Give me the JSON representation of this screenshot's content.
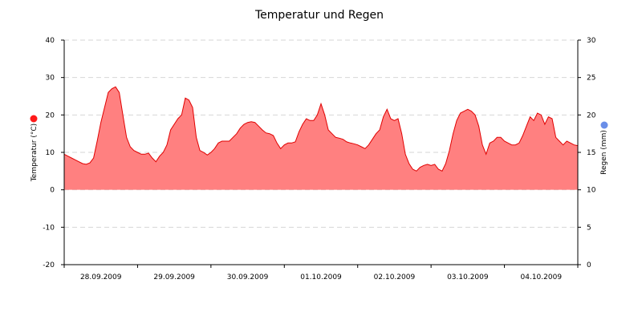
{
  "chart_data": {
    "type": "area",
    "title": "Temperatur und Regen",
    "y_left": {
      "label": "Temperatur (°C)",
      "min": -20,
      "max": 40,
      "ticks": [
        -20,
        -10,
        0,
        10,
        20,
        30,
        40
      ]
    },
    "y_right": {
      "label": "Regen (mm)",
      "min": 0,
      "max": 30,
      "ticks": [
        0,
        5,
        10,
        15,
        20,
        25,
        30
      ]
    },
    "x_labels": [
      "28.09.2009",
      "29.09.2009",
      "30.09.2009",
      "01.10.2009",
      "02.10.2009",
      "03.10.2009",
      "04.10.2009"
    ],
    "grid": true,
    "legend": [
      {
        "side": "left",
        "color": "#ff1a1a"
      },
      {
        "side": "right",
        "color": "#6a8ee8"
      }
    ],
    "series": [
      {
        "axis": "left",
        "color": "#ff8080",
        "line_color": "#e00000",
        "x": [
          0,
          0.05,
          0.1,
          0.15,
          0.2,
          0.25,
          0.3,
          0.35,
          0.4,
          0.45,
          0.5,
          0.55,
          0.6,
          0.65,
          0.7,
          0.75,
          0.8,
          0.85,
          0.9,
          0.95,
          1.0,
          1.05,
          1.1,
          1.15,
          1.2,
          1.25,
          1.3,
          1.35,
          1.4,
          1.45,
          1.5,
          1.55,
          1.6,
          1.65,
          1.7,
          1.75,
          1.8,
          1.85,
          1.9,
          1.95,
          2.0,
          2.05,
          2.1,
          2.15,
          2.2,
          2.25,
          2.3,
          2.35,
          2.4,
          2.45,
          2.5,
          2.55,
          2.6,
          2.65,
          2.7,
          2.75,
          2.8,
          2.85,
          2.9,
          2.95,
          3.0,
          3.05,
          3.1,
          3.15,
          3.2,
          3.25,
          3.3,
          3.35,
          3.4,
          3.45,
          3.5,
          3.55,
          3.6,
          3.65,
          3.7,
          3.75,
          3.8,
          3.85,
          3.9,
          3.95,
          4.0,
          4.05,
          4.1,
          4.15,
          4.2,
          4.25,
          4.3,
          4.35,
          4.4,
          4.45,
          4.5,
          4.55,
          4.6,
          4.65,
          4.7,
          4.75,
          4.8,
          4.85,
          4.9,
          4.95,
          5.0,
          5.05,
          5.1,
          5.15,
          5.2,
          5.25,
          5.3,
          5.35,
          5.4,
          5.45,
          5.5,
          5.55,
          5.6,
          5.65,
          5.7,
          5.75,
          5.8,
          5.85,
          5.9,
          5.95,
          6.0,
          6.05,
          6.1,
          6.15,
          6.2,
          6.25,
          6.3,
          6.35,
          6.4,
          6.45,
          6.5,
          6.55,
          6.6,
          6.65,
          6.7,
          6.75,
          6.8,
          6.85,
          6.9,
          6.95,
          7.0
        ],
        "values": [
          9.5,
          9,
          8.5,
          8,
          7.5,
          7,
          6.8,
          7.2,
          8.5,
          13,
          18,
          22,
          26,
          27,
          27.5,
          26,
          20,
          14,
          11.5,
          10.5,
          10,
          9.5,
          9.5,
          9.8,
          8.5,
          7.5,
          9,
          10,
          12,
          16,
          17.5,
          19,
          20,
          24.5,
          24,
          22,
          14,
          10.5,
          10,
          9.3,
          10,
          11,
          12.5,
          13,
          13,
          13,
          14,
          15,
          16.5,
          17.5,
          18,
          18.2,
          18,
          17,
          16,
          15.2,
          15,
          14.5,
          12.5,
          11,
          12,
          12.5,
          12.5,
          12.8,
          15.5,
          17.5,
          19,
          18.5,
          18.5,
          20,
          23,
          20,
          16,
          15,
          14,
          13.8,
          13.5,
          12.8,
          12.5,
          12.3,
          12,
          11.5,
          11,
          12,
          13.5,
          15,
          16,
          19.5,
          21.5,
          19,
          18.5,
          19,
          15,
          9.5,
          7,
          5.5,
          5,
          6,
          6.5,
          6.8,
          6.5,
          6.8,
          5.5,
          5,
          7,
          10.5,
          15,
          18.5,
          20.5,
          21,
          21.5,
          21,
          20,
          17,
          12,
          9.5,
          12.5,
          13,
          14,
          14,
          13,
          12.5,
          12,
          12,
          12.5,
          14.5,
          17,
          19.5,
          18.5,
          20.5,
          20,
          17.5,
          19.5,
          19,
          14,
          13,
          12,
          13,
          12.5,
          12,
          11.8
        ]
      }
    ]
  }
}
